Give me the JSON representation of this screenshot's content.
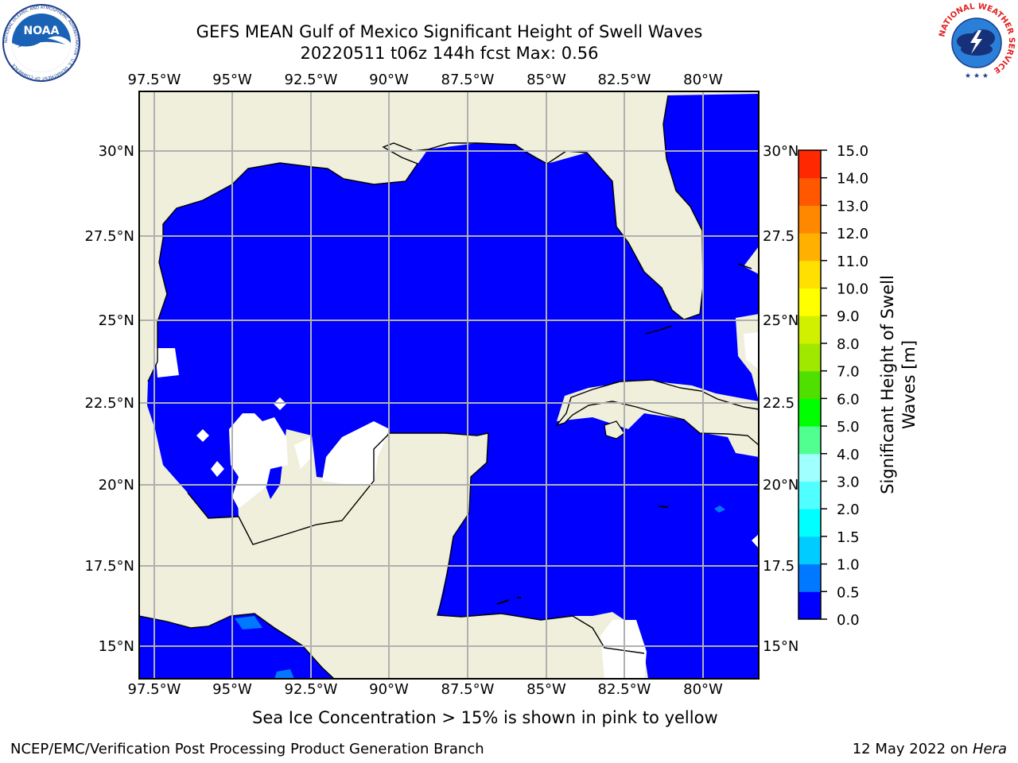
{
  "title_line1": "GEFS MEAN Gulf of Mexico Significant Height of Swell Waves",
  "title_line2": "20220511 t06z 144h fcst   Max: 0.56",
  "lon_ticks": [
    "97.5°W",
    "95°W",
    "92.5°W",
    "90°W",
    "87.5°W",
    "85°W",
    "82.5°W",
    "80°W"
  ],
  "lat_ticks": [
    "30°N",
    "27.5°N",
    "25°N",
    "22.5°N",
    "20°N",
    "17.5°N",
    "15°N"
  ],
  "right_lat_ticks": [
    "30°N",
    "27.5",
    "25°N",
    "22.5",
    "20°N",
    "17.5",
    "15°N"
  ],
  "colorbar": {
    "label_line1": "Significant Height of Swell",
    "label_line2": "Waves [m]",
    "ticks": [
      "0.0",
      "0.5",
      "1.0",
      "1.5",
      "2.0",
      "3.0",
      "4.0",
      "5.0",
      "6.0",
      "7.0",
      "8.0",
      "9.0",
      "10.0",
      "11.0",
      "12.0",
      "13.0",
      "14.0",
      "15.0"
    ],
    "colors": [
      "#0000ff",
      "#0078ff",
      "#00ccff",
      "#00ffff",
      "#50ffff",
      "#a0ffff",
      "#50ff90",
      "#00ff00",
      "#50e000",
      "#a0e800",
      "#d0f000",
      "#ffff00",
      "#ffe000",
      "#ffb000",
      "#ff8800",
      "#ff5800",
      "#ff2800",
      "#ff0000"
    ]
  },
  "colors": {
    "land": "#efefdc",
    "water_swell": "#0000ff",
    "grid": "#b0b0b0"
  },
  "note": "Sea Ice Concentration > 15% is shown in pink to yellow",
  "footer_left": "NCEP/EMC/Verification Post Processing Product Generation Branch",
  "footer_date": "12 May 2022 on ",
  "footer_host": "Hera",
  "logos": {
    "left": "noaa-logo",
    "right": "nws-logo"
  },
  "logo_text": {
    "noaa": "NOAA",
    "noaa_ring": "NATIONAL OCEANIC AND ATMOSPHERIC ADMINISTRATION · U.S. DEPARTMENT OF COMMERCE",
    "nws_ring": "NATIONAL WEATHER SERVICE"
  }
}
